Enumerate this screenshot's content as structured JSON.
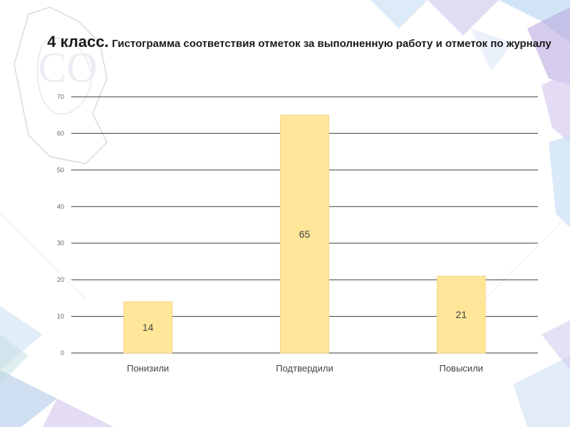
{
  "title": {
    "main": "4 класс.",
    "rest": "Гистограмма соответствия отметок за выполненную работу и отметок по журналу"
  },
  "colors": {
    "bar": "#FFE699",
    "bar_edge": "#F2D27A",
    "grid": "#3a3a3a",
    "accent_blue": "#7FB3E8",
    "accent_purple": "#B39DDB",
    "accent_teal": "#A7D8D8"
  },
  "chart_data": {
    "type": "bar",
    "categories": [
      "Понизили",
      "Подтвердили",
      "Повысили"
    ],
    "values": [
      14,
      65,
      21
    ],
    "title": "",
    "xlabel": "",
    "ylabel": "",
    "ylim": [
      0,
      70
    ],
    "yticks": [
      0,
      10,
      20,
      30,
      40,
      50,
      60,
      70
    ],
    "grid": true,
    "data_labels": true
  }
}
